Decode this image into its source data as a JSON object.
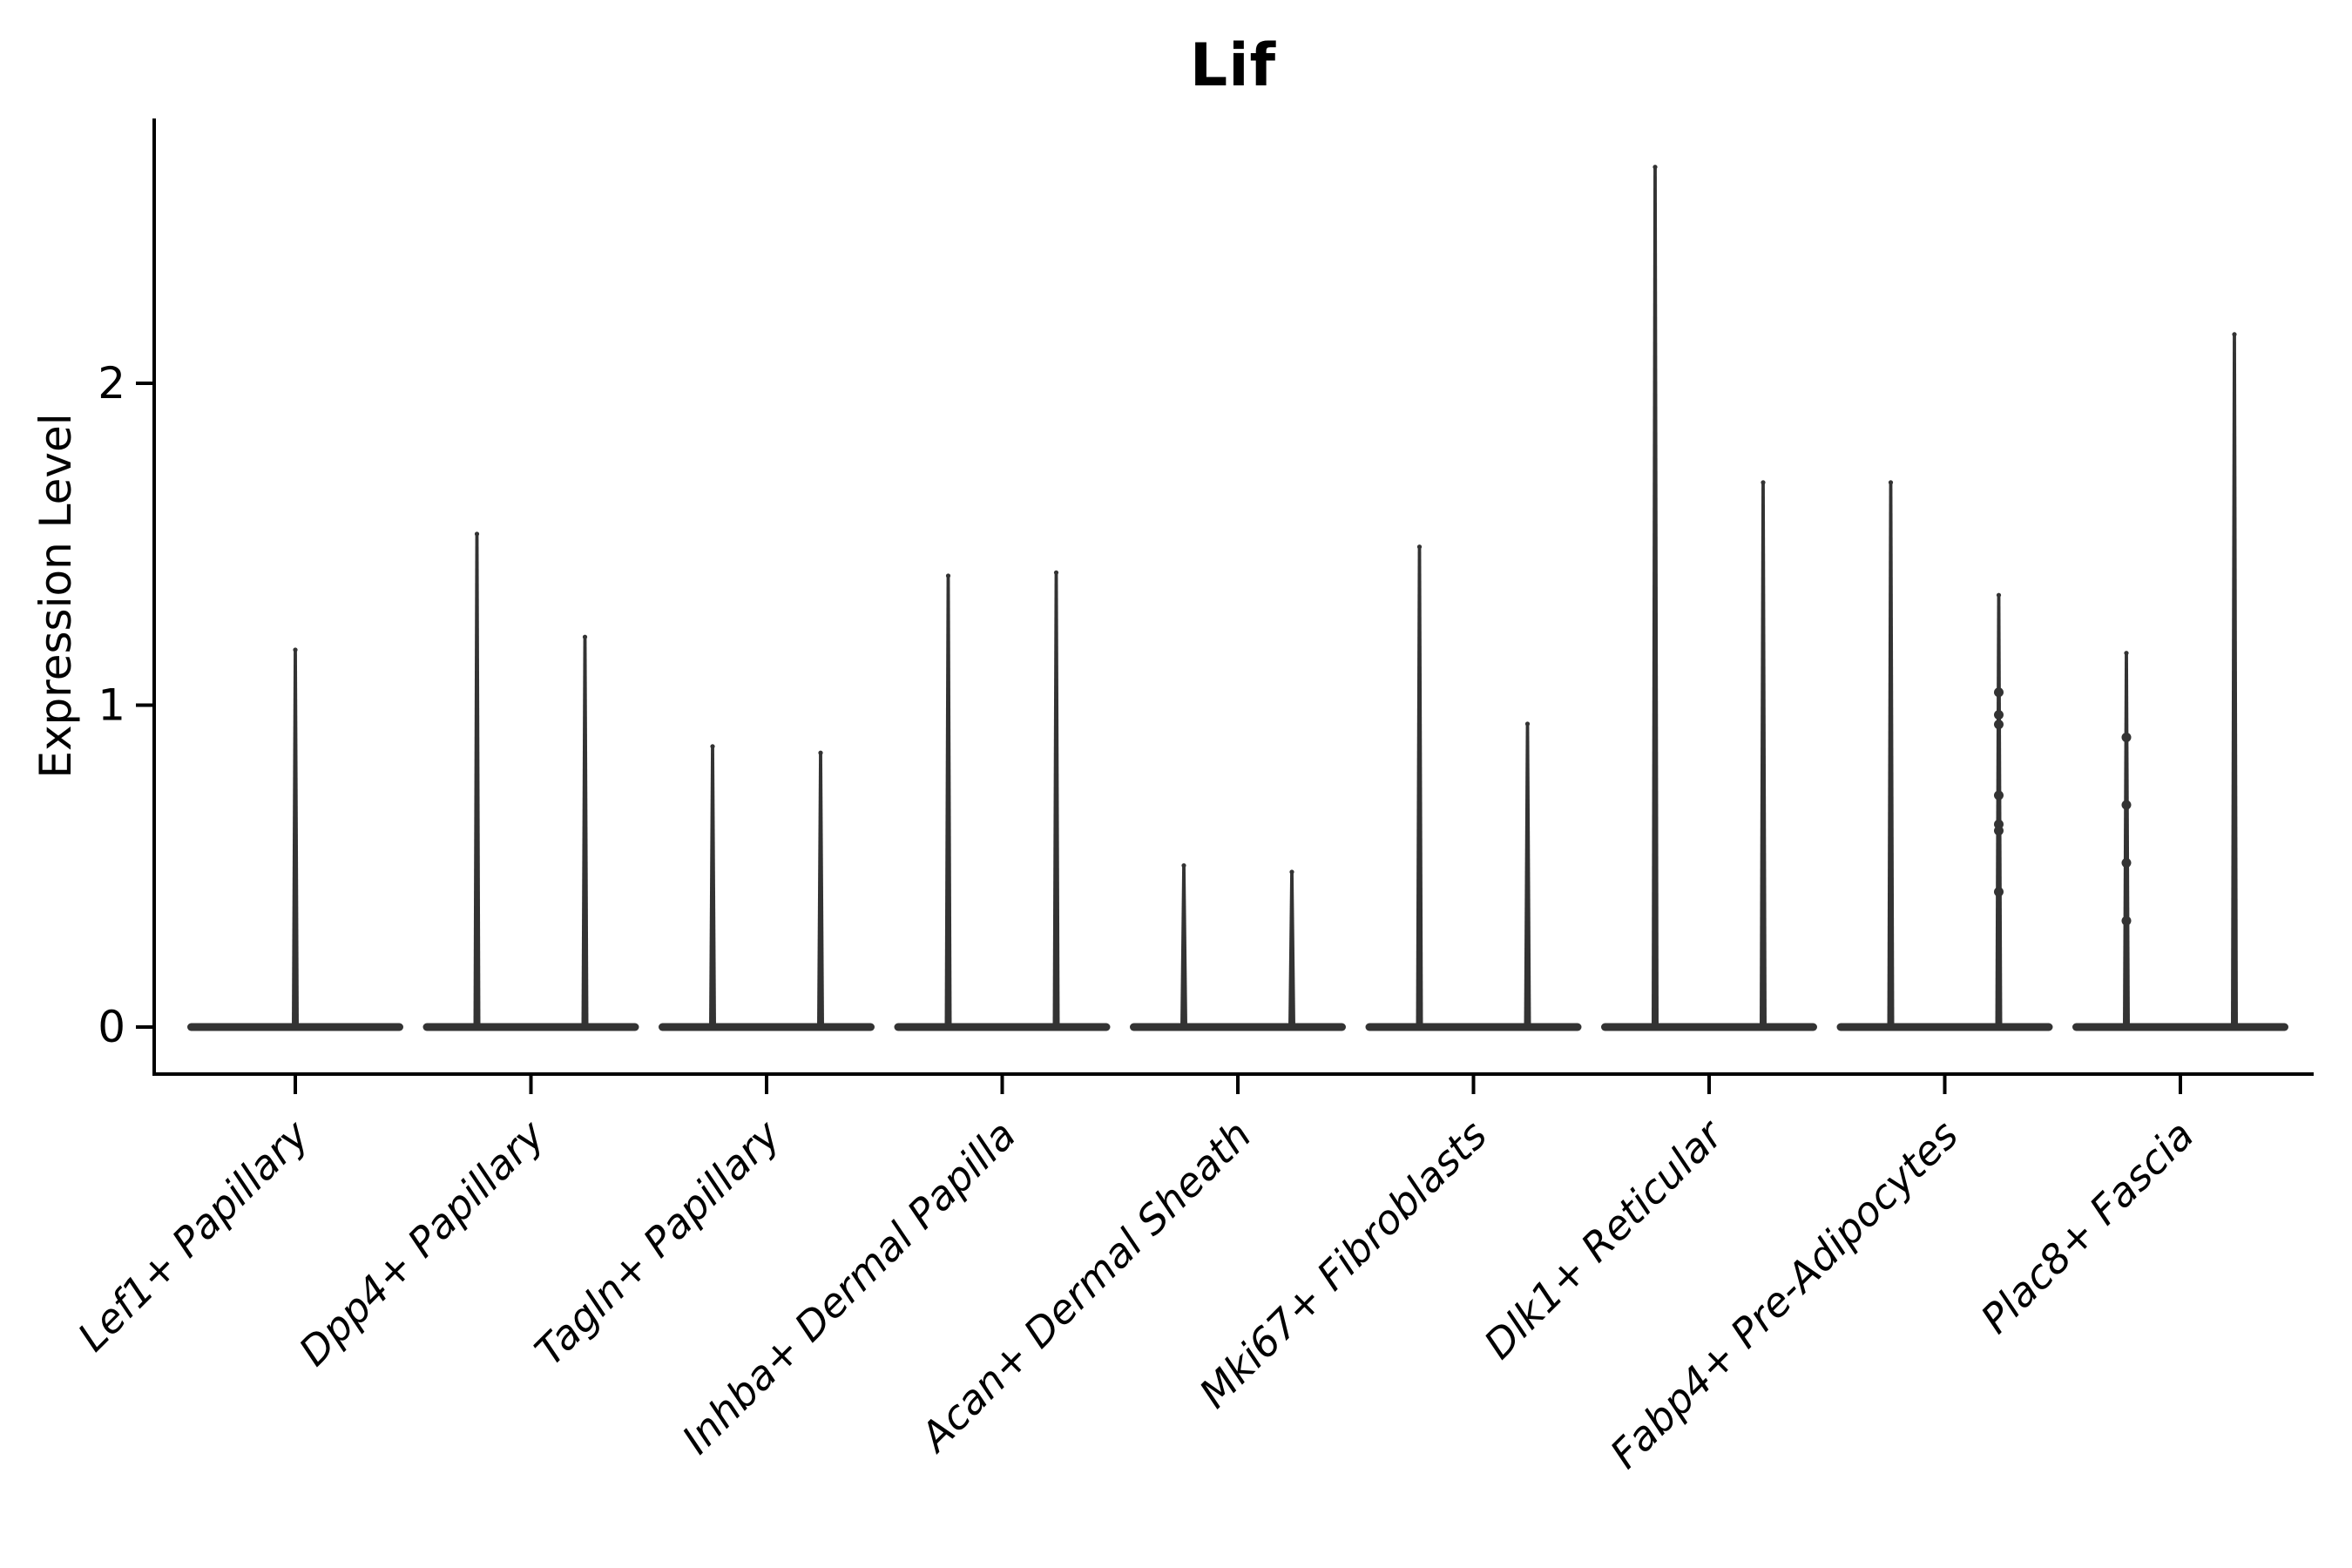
{
  "title": "Lif",
  "chart_data": {
    "type": "violin",
    "title": "Lif",
    "xlabel": "",
    "ylabel": "Expression Level",
    "ylim": [
      -0.15,
      2.82
    ],
    "yticks": [
      0,
      1,
      2
    ],
    "grid": false,
    "legend": null,
    "note": "Single-cell expression violin plot; each cluster shows density flattened at 0 with a thin tail up to its maximum expression; Lef1+ Papillary has a single full-width violin, all other clusters have two side-by-side violins.",
    "categories": [
      "Lef1+ Papillary",
      "Dpp4+ Papillary",
      "Tagln+ Papillary",
      "Inhba+ Dermal Papilla",
      "Acan+ Dermal Sheath",
      "Mki67+ Fibroblasts",
      "Dlk1+ Reticular",
      "Fabp4+ Pre-Adipocytes",
      "Plac8+ Fascia"
    ],
    "groups": [
      {
        "category": "Lef1+ Papillary",
        "violins": [
          {
            "max_expression": 1.18,
            "dots": []
          }
        ]
      },
      {
        "category": "Dpp4+ Papillary",
        "violins": [
          {
            "max_expression": 1.54,
            "dots": []
          },
          {
            "max_expression": 1.22,
            "dots": []
          }
        ]
      },
      {
        "category": "Tagln+ Papillary",
        "violins": [
          {
            "max_expression": 0.88,
            "dots": []
          },
          {
            "max_expression": 0.86,
            "dots": []
          }
        ]
      },
      {
        "category": "Inhba+ Dermal Papilla",
        "violins": [
          {
            "max_expression": 1.41,
            "dots": []
          },
          {
            "max_expression": 1.42,
            "dots": []
          }
        ]
      },
      {
        "category": "Acan+ Dermal Sheath",
        "violins": [
          {
            "max_expression": 0.51,
            "dots": []
          },
          {
            "max_expression": 0.49,
            "dots": []
          }
        ]
      },
      {
        "category": "Mki67+ Fibroblasts",
        "violins": [
          {
            "max_expression": 1.5,
            "dots": []
          },
          {
            "max_expression": 0.95,
            "dots": []
          }
        ]
      },
      {
        "category": "Dlk1+ Reticular",
        "violins": [
          {
            "max_expression": 2.68,
            "dots": []
          },
          {
            "max_expression": 1.7,
            "dots": []
          }
        ]
      },
      {
        "category": "Fabp4+ Pre-Adipocytes",
        "violins": [
          {
            "max_expression": 1.7,
            "dots": []
          },
          {
            "max_expression": 1.35,
            "dots": [
              1.04,
              0.97,
              0.94,
              0.72,
              0.63,
              0.61,
              0.42
            ]
          }
        ]
      },
      {
        "category": "Plac8+ Fascia",
        "violins": [
          {
            "max_expression": 1.17,
            "dots": [
              0.9,
              0.69,
              0.51,
              0.33
            ]
          },
          {
            "max_expression": 2.16,
            "dots": []
          }
        ]
      }
    ],
    "colors": {
      "violin": "#333333",
      "axis": "#000000",
      "text": "#000000",
      "background": "#ffffff"
    },
    "layout_hints": {
      "x_tick_label_rotation_deg": 45,
      "x_tick_labels_italic": true,
      "spines": [
        "left",
        "bottom"
      ]
    }
  }
}
